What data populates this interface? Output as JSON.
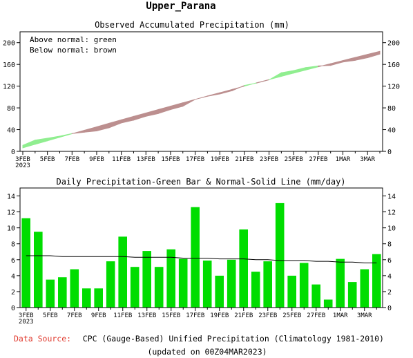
{
  "title": "Upper_Parana",
  "footer": {
    "source_label": "Data Source:",
    "source_text": "CPC (Gauge-Based) Unified Precipitation (Climatology 1981-2010)",
    "updated": "(updated on 00Z04MAR2023)"
  },
  "colors": {
    "above": "#90ee90",
    "below": "#bc8f8f",
    "bar": "#00dd00",
    "normal_line": "#000000",
    "source_label": "#e03a2e"
  },
  "chart_data": [
    {
      "type": "area",
      "title": "Observed Accumulated Precipitation (mm)",
      "legend": [
        "Above normal: green",
        "Below normal: brown"
      ],
      "legend_position": "top-left",
      "ylim": [
        0,
        220
      ],
      "yticks": [
        0,
        40,
        80,
        120,
        160,
        200
      ],
      "x_dates": [
        "3FEB",
        "4FEB",
        "5FEB",
        "6FEB",
        "7FEB",
        "8FEB",
        "9FEB",
        "10FEB",
        "11FEB",
        "12FEB",
        "13FEB",
        "14FEB",
        "15FEB",
        "16FEB",
        "17FEB",
        "18FEB",
        "19FEB",
        "20FEB",
        "21FEB",
        "22FEB",
        "23FEB",
        "24FEB",
        "25FEB",
        "26FEB",
        "27FEB",
        "28FEB",
        "1MAR",
        "2MAR",
        "3MAR",
        "4MAR"
      ],
      "x_tick_labels": [
        "3FEB",
        "5FEB",
        "7FEB",
        "9FEB",
        "11FEB",
        "13FEB",
        "15FEB",
        "17FEB",
        "19FEB",
        "21FEB",
        "23FEB",
        "25FEB",
        "27FEB",
        "1MAR",
        "3MAR"
      ],
      "x_first_year": "2023",
      "observed": [
        11.2,
        20.7,
        24.2,
        28.0,
        32.8,
        35.2,
        37.6,
        43.4,
        52.3,
        57.4,
        64.5,
        69.6,
        76.9,
        83.0,
        95.6,
        101.5,
        105.5,
        111.5,
        121.3,
        125.8,
        131.6,
        144.7,
        148.7,
        154.3,
        157.2,
        158.2,
        164.3,
        167.5,
        172.3,
        179.0
      ],
      "normal": [
        6.5,
        13.0,
        19.5,
        25.9,
        32.4,
        38.8,
        45.2,
        51.6,
        58.0,
        64.3,
        70.6,
        76.9,
        83.2,
        89.4,
        95.6,
        101.8,
        107.9,
        114.0,
        120.1,
        126.1,
        132.1,
        138.0,
        143.9,
        149.8,
        155.6,
        161.4,
        167.1,
        172.8,
        178.4,
        184.0
      ]
    },
    {
      "type": "bar",
      "title": "Daily Precipitation-Green Bar & Normal-Solid Line (mm/day)",
      "ylim": [
        0,
        15
      ],
      "yticks": [
        0,
        2,
        4,
        6,
        8,
        10,
        12,
        14
      ],
      "categories": [
        "3FEB",
        "4FEB",
        "5FEB",
        "6FEB",
        "7FEB",
        "8FEB",
        "9FEB",
        "10FEB",
        "11FEB",
        "12FEB",
        "13FEB",
        "14FEB",
        "15FEB",
        "16FEB",
        "17FEB",
        "18FEB",
        "19FEB",
        "20FEB",
        "21FEB",
        "22FEB",
        "23FEB",
        "24FEB",
        "25FEB",
        "26FEB",
        "27FEB",
        "28FEB",
        "1MAR",
        "2MAR",
        "3MAR",
        "4MAR"
      ],
      "x_tick_labels": [
        "3FEB",
        "5FEB",
        "7FEB",
        "9FEB",
        "11FEB",
        "13FEB",
        "15FEB",
        "17FEB",
        "19FEB",
        "21FEB",
        "23FEB",
        "25FEB",
        "27FEB",
        "1MAR",
        "3MAR"
      ],
      "x_first_year": "2023",
      "values": [
        11.2,
        9.5,
        3.5,
        3.8,
        4.8,
        2.4,
        2.4,
        5.8,
        8.9,
        5.1,
        7.1,
        5.1,
        7.3,
        6.1,
        12.6,
        5.9,
        4.0,
        6.0,
        9.8,
        4.5,
        5.8,
        13.1,
        4.0,
        5.6,
        2.9,
        1.0,
        6.1,
        3.2,
        4.8,
        6.7
      ],
      "normal": [
        6.5,
        6.5,
        6.5,
        6.4,
        6.4,
        6.4,
        6.4,
        6.4,
        6.4,
        6.3,
        6.3,
        6.3,
        6.3,
        6.2,
        6.2,
        6.2,
        6.1,
        6.1,
        6.1,
        6.0,
        6.0,
        5.9,
        5.9,
        5.9,
        5.8,
        5.8,
        5.7,
        5.7,
        5.6,
        5.6
      ]
    }
  ]
}
